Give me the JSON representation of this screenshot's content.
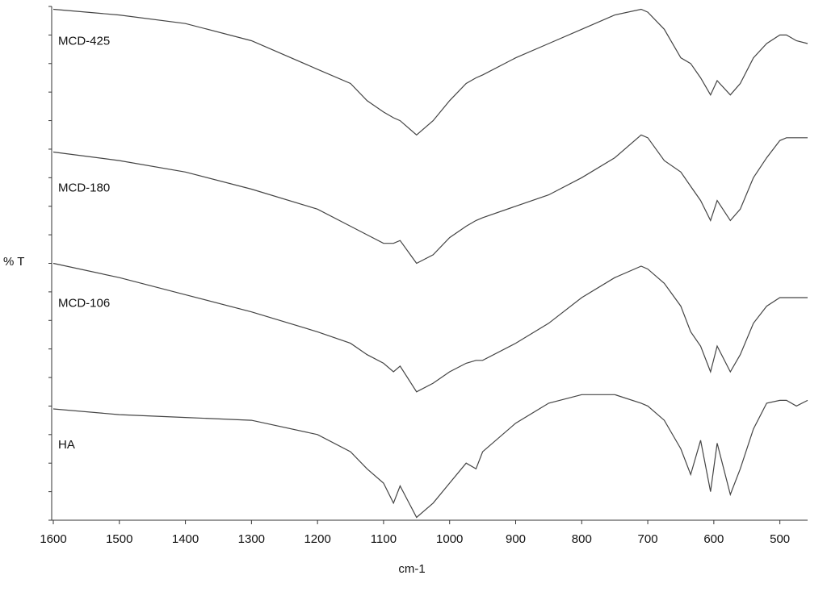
{
  "chart_data": {
    "type": "line",
    "x_label": "cm-1",
    "y_label": "% T",
    "x": [
      1600,
      1500,
      1400,
      1300,
      1200,
      1150,
      1125,
      1100,
      1085,
      1075,
      1050,
      1025,
      1000,
      975,
      960,
      950,
      900,
      850,
      800,
      750,
      710,
      700,
      675,
      650,
      635,
      620,
      605,
      595,
      575,
      560,
      540,
      520,
      500,
      490,
      475,
      458
    ],
    "series": [
      {
        "name": "MCD-425",
        "color": "#444444",
        "values": [
          17.9,
          17.7,
          17.4,
          16.8,
          15.8,
          15.3,
          14.7,
          14.3,
          14.1,
          14.0,
          13.5,
          14.0,
          14.7,
          15.3,
          15.5,
          15.6,
          16.2,
          16.7,
          17.2,
          17.7,
          17.9,
          17.8,
          17.2,
          16.2,
          16.0,
          15.5,
          14.9,
          15.4,
          14.9,
          15.3,
          16.2,
          16.7,
          17.0,
          17.0,
          16.8,
          16.7
        ]
      },
      {
        "name": "MCD-180",
        "color": "#444444",
        "values": [
          12.9,
          12.6,
          12.2,
          11.6,
          10.9,
          10.3,
          10.0,
          9.7,
          9.7,
          9.8,
          9.0,
          9.3,
          9.9,
          10.3,
          10.5,
          10.6,
          11.0,
          11.4,
          12.0,
          12.7,
          13.5,
          13.4,
          12.6,
          12.2,
          11.7,
          11.2,
          10.5,
          11.2,
          10.5,
          10.9,
          12.0,
          12.7,
          13.3,
          13.4,
          13.4,
          13.4
        ]
      },
      {
        "name": "MCD-106",
        "color": "#444444",
        "values": [
          9.0,
          8.5,
          7.9,
          7.3,
          6.6,
          6.2,
          5.8,
          5.5,
          5.2,
          5.4,
          4.5,
          4.8,
          5.2,
          5.5,
          5.6,
          5.6,
          6.2,
          6.9,
          7.8,
          8.5,
          8.9,
          8.8,
          8.3,
          7.5,
          6.6,
          6.1,
          5.2,
          6.1,
          5.2,
          5.8,
          6.9,
          7.5,
          7.8,
          7.8,
          7.8,
          7.8
        ]
      },
      {
        "name": "HA",
        "color": "#444444",
        "values": [
          3.9,
          3.7,
          3.6,
          3.5,
          3.0,
          2.4,
          1.8,
          1.3,
          0.6,
          1.2,
          0.1,
          0.6,
          1.3,
          2.0,
          1.8,
          2.4,
          3.4,
          4.1,
          4.4,
          4.4,
          4.1,
          4.0,
          3.5,
          2.5,
          1.6,
          2.8,
          1.0,
          2.7,
          0.9,
          1.8,
          3.2,
          4.1,
          4.2,
          4.2,
          4.0,
          4.2
        ]
      }
    ],
    "xlim": [
      1600,
      458
    ],
    "xticks": [
      1600,
      1500,
      1400,
      1300,
      1200,
      1100,
      1000,
      900,
      800,
      700,
      600,
      500
    ],
    "ylim": [
      0,
      18
    ],
    "yticks": [
      0,
      1,
      2,
      3,
      4,
      5,
      6,
      7,
      8,
      9,
      10,
      11,
      12,
      13,
      14,
      15,
      16,
      17,
      18
    ]
  }
}
